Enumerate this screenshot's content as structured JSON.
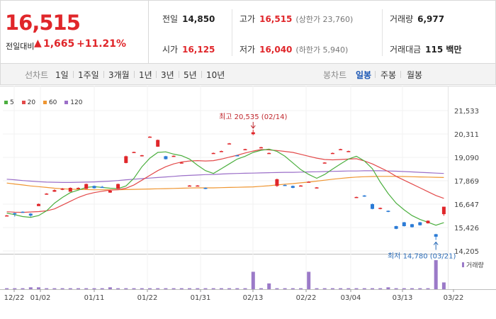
{
  "quote": {
    "price": "16,515",
    "change_label": "전일대비",
    "change_arrow": "▲",
    "change_value": "1,665",
    "change_rate": "+11.21%"
  },
  "stats": {
    "prev_close_label": "전일",
    "prev_close": "14,850",
    "high_label": "고가",
    "high": "16,515",
    "upper_limit": "(상한가 23,760)",
    "volume_label": "거래량",
    "volume": "6,977",
    "open_label": "시가",
    "open": "16,125",
    "low_label": "저가",
    "low": "16,040",
    "lower_limit": "(하한가 5,940)",
    "trade_value_label": "거래대금",
    "trade_value": "115 백만"
  },
  "periods": {
    "line_header": "선차트",
    "line_options": [
      "1일",
      "1주일",
      "3개월",
      "1년",
      "3년",
      "5년",
      "10년"
    ],
    "candle_header": "봉차트",
    "candle_options": [
      "일봉",
      "주봉",
      "월봉"
    ],
    "active_candle": "일봉"
  },
  "colors": {
    "up": "#e0262a",
    "down": "#2b7bd6",
    "ma5": "#4caf3f",
    "ma20": "#e34a4a",
    "ma60": "#ef9632",
    "ma120": "#9b6fc8",
    "volume": "#9b7ac8"
  },
  "chart_data": {
    "type": "candlestick",
    "legend": [
      "5",
      "20",
      "60",
      "120"
    ],
    "y_ticks": [
      "21,533",
      "20,311",
      "19,090",
      "17,869",
      "16,647",
      "15,426",
      "14,205"
    ],
    "y_range": [
      14205,
      21533
    ],
    "x_ticks": [
      "12/22",
      "01/02",
      "01/11",
      "01/22",
      "01/31",
      "02/13",
      "02/22",
      "03/04",
      "03/13",
      "03/22"
    ],
    "high_annotation": "최고 20,535 (02/14)",
    "low_annotation": "최저 14,780 (03/21)",
    "volume_legend": "거래량",
    "candles": [
      [
        16040,
        16060,
        16040,
        16080
      ],
      [
        16180,
        16120,
        16000,
        16200
      ],
      [
        16250,
        16230,
        16210,
        16270
      ],
      [
        16150,
        16050,
        15990,
        16180
      ],
      [
        16550,
        16660,
        16550,
        16680
      ],
      [
        17150,
        17200,
        17140,
        17220
      ],
      [
        17300,
        17380,
        17290,
        17420
      ],
      [
        17400,
        17460,
        17380,
        17490
      ],
      [
        17300,
        17500,
        17300,
        17520
      ],
      [
        17450,
        17500,
        17430,
        17520
      ],
      [
        17450,
        17700,
        17440,
        17720
      ],
      [
        17600,
        17480,
        17460,
        17620
      ],
      [
        17550,
        17520,
        17500,
        17600
      ],
      [
        17250,
        17350,
        17240,
        17380
      ],
      [
        17450,
        17700,
        17440,
        17720
      ],
      [
        18800,
        19150,
        18780,
        19180
      ],
      [
        19350,
        19370,
        19330,
        19390
      ],
      [
        19150,
        19200,
        19140,
        19220
      ],
      [
        20150,
        20170,
        20130,
        20190
      ],
      [
        19650,
        20000,
        19640,
        20020
      ],
      [
        19150,
        19000,
        18980,
        19170
      ],
      [
        19150,
        19170,
        19130,
        19190
      ],
      [
        18800,
        18820,
        18780,
        18840
      ],
      [
        17600,
        17620,
        17580,
        17640
      ],
      [
        17600,
        17620,
        17580,
        17640
      ],
      [
        17500,
        17450,
        17430,
        17520
      ],
      [
        19300,
        19320,
        19280,
        19340
      ],
      [
        19400,
        19420,
        19380,
        19440
      ],
      [
        19800,
        19820,
        19780,
        19840
      ],
      [
        19200,
        19180,
        19160,
        19220
      ],
      [
        19500,
        19520,
        19480,
        19540
      ],
      [
        20300,
        20400,
        20250,
        20535
      ],
      [
        19600,
        19620,
        19580,
        19640
      ],
      [
        19300,
        19320,
        19280,
        19340
      ],
      [
        17600,
        17950,
        17550,
        17980
      ],
      [
        17650,
        17640,
        17620,
        17680
      ],
      [
        17600,
        17500,
        17480,
        17620
      ],
      [
        17600,
        17620,
        17580,
        17640
      ],
      [
        17800,
        17820,
        17780,
        17840
      ],
      [
        17500,
        17520,
        17480,
        17540
      ],
      [
        18800,
        18820,
        18780,
        18840
      ],
      [
        19300,
        19320,
        19280,
        19340
      ],
      [
        19500,
        19520,
        19480,
        19540
      ],
      [
        19400,
        19420,
        19380,
        19440
      ],
      [
        17000,
        17020,
        16980,
        17040
      ],
      [
        17100,
        17050,
        17030,
        17120
      ],
      [
        16650,
        16400,
        16380,
        16680
      ],
      [
        16400,
        16450,
        16380,
        16470
      ],
      [
        16300,
        16250,
        16230,
        16320
      ],
      [
        15500,
        15360,
        15340,
        15520
      ],
      [
        15700,
        15500,
        15480,
        15720
      ],
      [
        15600,
        15450,
        15430,
        15620
      ],
      [
        15700,
        15550,
        15530,
        15720
      ],
      [
        15650,
        15780,
        15630,
        15800
      ],
      [
        15080,
        14950,
        14780,
        15100
      ],
      [
        16125,
        16515,
        16040,
        16515
      ]
    ],
    "ma5": [
      16180,
      16100,
      16000,
      15960,
      16050,
      16300,
      16700,
      17000,
      17250,
      17380,
      17520,
      17560,
      17520,
      17480,
      17460,
      17600,
      18000,
      18600,
      19050,
      19350,
      19380,
      19260,
      19180,
      19000,
      18680,
      18400,
      18250,
      18500,
      18750,
      19000,
      19150,
      19350,
      19460,
      19520,
      19400,
      19150,
      18800,
      18450,
      18200,
      18000,
      18200,
      18480,
      18750,
      19000,
      19150,
      18900,
      18500,
      17800,
      17200,
      16700,
      16350,
      16050,
      15850,
      15700,
      15550,
      15680
    ],
    "ma20": [
      16250,
      16230,
      16220,
      16240,
      16260,
      16300,
      16400,
      16600,
      16800,
      17000,
      17150,
      17250,
      17320,
      17380,
      17400,
      17480,
      17650,
      17900,
      18150,
      18400,
      18600,
      18750,
      18850,
      18900,
      18920,
      18900,
      18920,
      19000,
      19100,
      19200,
      19320,
      19420,
      19500,
      19480,
      19450,
      19400,
      19350,
      19250,
      19150,
      19050,
      18980,
      18960,
      18980,
      19000,
      19020,
      18900,
      18750,
      18550,
      18350,
      18100,
      17900,
      17700,
      17500,
      17300,
      17100,
      16950
    ],
    "ma60": [
      17750,
      17700,
      17650,
      17600,
      17560,
      17520,
      17480,
      17450,
      17430,
      17420,
      17410,
      17400,
      17400,
      17400,
      17400,
      17410,
      17420,
      17430,
      17440,
      17450,
      17460,
      17470,
      17480,
      17490,
      17500,
      17500,
      17500,
      17510,
      17520,
      17530,
      17540,
      17550,
      17580,
      17610,
      17650,
      17690,
      17720,
      17760,
      17800,
      17850,
      17900,
      17950,
      17990,
      18030,
      18060,
      18080,
      18090,
      18100,
      18100,
      18100,
      18090,
      18080,
      18070,
      18060,
      18050,
      18040
    ],
    "ma120": [
      17950,
      17920,
      17880,
      17850,
      17820,
      17800,
      17790,
      17780,
      17780,
      17790,
      17800,
      17810,
      17830,
      17850,
      17880,
      17920,
      17950,
      17980,
      18010,
      18040,
      18070,
      18100,
      18130,
      18150,
      18170,
      18190,
      18200,
      18220,
      18240,
      18250,
      18260,
      18270,
      18280,
      18290,
      18300,
      18310,
      18310,
      18320,
      18330,
      18340,
      18350,
      18360,
      18370,
      18380,
      18380,
      18390,
      18390,
      18390,
      18380,
      18370,
      18350,
      18330,
      18310,
      18290,
      18270,
      18250
    ],
    "volume": [
      1,
      1,
      1,
      2,
      2,
      1,
      1,
      1,
      1,
      1,
      1,
      1,
      1,
      2,
      1,
      1,
      1,
      1,
      1,
      1,
      1,
      1,
      1,
      1,
      1,
      1,
      1,
      1,
      1,
      1,
      1,
      18,
      1,
      6,
      1,
      1,
      1,
      1,
      18,
      1,
      1,
      1,
      1,
      1,
      1,
      1,
      1,
      1,
      2,
      1,
      1,
      1,
      1,
      1,
      30,
      7
    ]
  }
}
